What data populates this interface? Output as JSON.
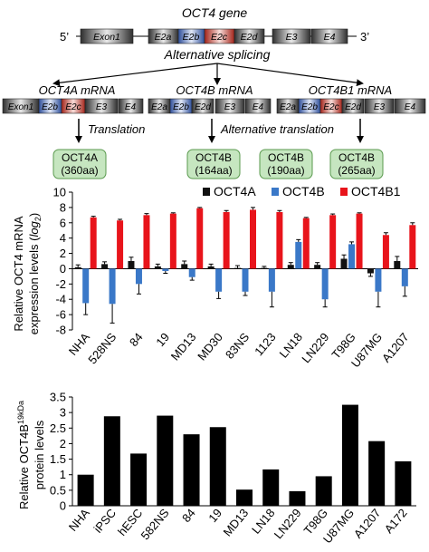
{
  "diagram": {
    "gene_title": "OCT4 gene",
    "five_prime": "5’",
    "three_prime": "3’",
    "gene_exons": [
      "Exon1",
      "E2a",
      "E2b",
      "E2c",
      "E2d",
      "E3",
      "E4"
    ],
    "splicing_label": "Alternative splicing",
    "isoforms": [
      {
        "title": "OCT4A mRNA",
        "exons": [
          "Exon1",
          "E2b",
          "E2c",
          "E3",
          "E4"
        ]
      },
      {
        "title": "OCT4B mRNA",
        "exons": [
          "E2a",
          "E2b",
          "E2d",
          "E3",
          "E4"
        ]
      },
      {
        "title": "OCT4B1 mRNA",
        "exons": [
          "E2a",
          "E2b",
          "E2c",
          "E2d",
          "E3",
          "E4"
        ]
      }
    ],
    "translation_label": "Translation",
    "alt_translation_label": "Alternative translation",
    "proteins": [
      {
        "name": "OCT4A",
        "size": "(360aa)"
      },
      {
        "name": "OCT4B",
        "size": "(164aa)"
      },
      {
        "name": "OCT4B",
        "size": "(190aa)"
      },
      {
        "name": "OCT4B",
        "size": "(265aa)"
      }
    ],
    "colors": {
      "exon_dark": "#3a3a3a",
      "exon_light": "#e6e6e6",
      "exon_blue": "#4f6fb5",
      "exon_red": "#c0392b",
      "protein_fill": "#c6e6c0",
      "protein_stroke": "#5a9a4e"
    }
  },
  "chart_data": [
    {
      "type": "bar",
      "ylabel_line1": "Relative OCT4  mRNA",
      "ylabel_line2": "expression levels (",
      "ylabel_log": "log",
      "ylabel_sub": "2",
      "ylabel_close": ")",
      "ylim": [
        -8,
        10
      ],
      "yticks": [
        -8,
        -6,
        -4,
        -2,
        0,
        2,
        4,
        6,
        8,
        10
      ],
      "legend_position": "top-right",
      "categories": [
        "NHA",
        "528NS",
        "84",
        "19",
        "MD13",
        "MD30",
        "83NS",
        "1123",
        "LN18",
        "LN229",
        "T98G",
        "U87MG",
        "A1207"
      ],
      "series": [
        {
          "name": "OCT4A",
          "color": "#111111",
          "values": [
            0.2,
            0.6,
            1.0,
            0.3,
            0.6,
            0.3,
            0.1,
            0.1,
            0.5,
            0.5,
            1.3,
            -0.6,
            1.0
          ],
          "errors": [
            0.3,
            0.3,
            0.5,
            0.3,
            0.4,
            0.3,
            0.3,
            0.2,
            0.3,
            0.3,
            0.5,
            0.4,
            0.6
          ]
        },
        {
          "name": "OCT4B",
          "color": "#3a78c8",
          "values": [
            -4.5,
            -4.6,
            -2.0,
            -0.3,
            -1.1,
            -3.0,
            -3.0,
            -3.0,
            3.5,
            -4.0,
            3.2,
            -3.0,
            -2.3
          ],
          "errors": [
            1.5,
            2.5,
            1.3,
            0.3,
            0.4,
            0.9,
            0.5,
            2.0,
            0.3,
            1.0,
            0.3,
            2.0,
            1.3
          ]
        },
        {
          "name": "OCT4B1",
          "color": "#e8141b",
          "values": [
            6.7,
            6.3,
            7.0,
            7.2,
            7.9,
            7.4,
            7.7,
            7.4,
            6.6,
            7.0,
            7.2,
            4.4,
            5.7
          ],
          "errors": [
            0.15,
            0.15,
            0.2,
            0.1,
            0.1,
            0.2,
            0.3,
            0.2,
            0.1,
            0.15,
            0.1,
            0.3,
            0.3
          ]
        }
      ]
    },
    {
      "type": "bar",
      "ylabel_line1_pre": "Relative OCT4B",
      "ylabel_sup": "19kDa",
      "ylabel_line2": "protein levels",
      "ylim": [
        0,
        3.5
      ],
      "yticks": [
        0,
        0.5,
        1,
        1.5,
        2,
        2.5,
        3,
        3.5
      ],
      "categories": [
        "NHA",
        "iPSC",
        "hESC",
        "582NS",
        "84",
        "19",
        "MD13",
        "LN18",
        "LN229",
        "T98G",
        "U87MG",
        "A1207",
        "A172"
      ],
      "series": [
        {
          "color": "#000000",
          "values": [
            1.0,
            2.88,
            1.68,
            2.9,
            2.3,
            2.53,
            0.52,
            1.17,
            0.47,
            0.95,
            3.25,
            2.08,
            1.43
          ]
        }
      ]
    }
  ]
}
